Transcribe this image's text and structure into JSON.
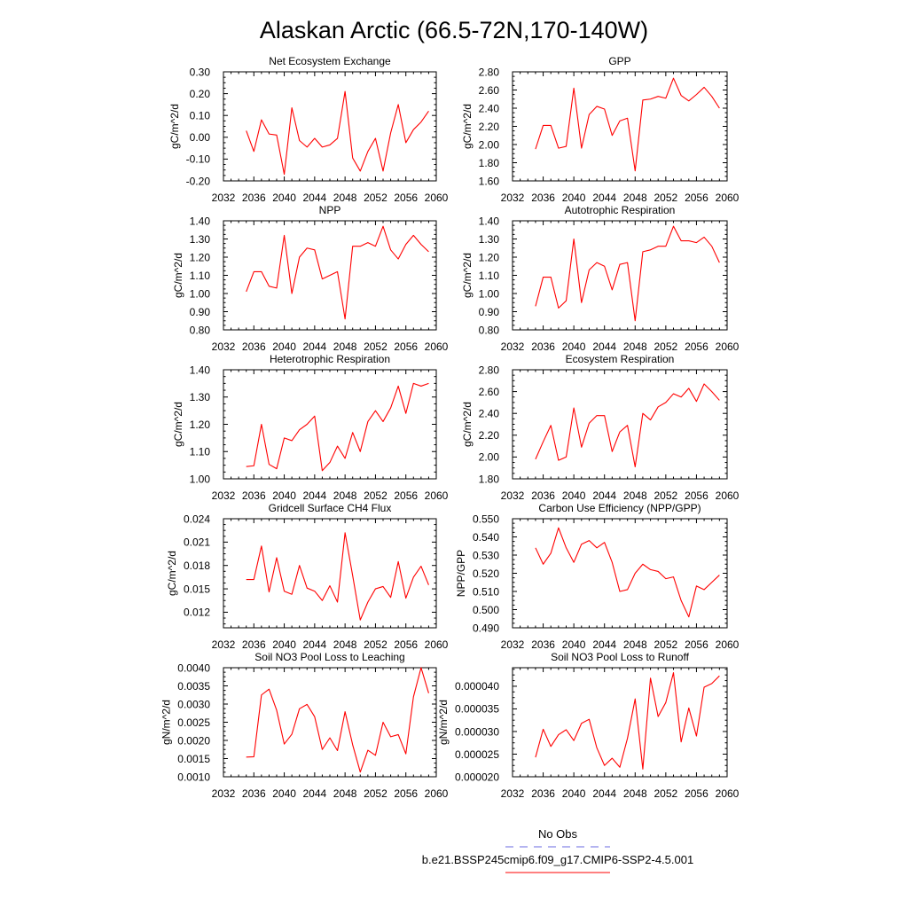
{
  "figure": {
    "title": "Alaskan Arctic (66.5-72N,170-140W)",
    "legend_position": "bottom",
    "legend": [
      {
        "label": "No Obs",
        "color": "#6a6ae0",
        "line_style": "dashed"
      },
      {
        "label": "b.e21.BSSP245cmip6.f09_g17.CMIP6-SSP2-4.5.001",
        "color": "#ff0000",
        "line_style": "solid"
      }
    ]
  },
  "chart_data": [
    {
      "type": "line",
      "title": "Net Ecosystem Exchange",
      "ylabel": "gC/m^2/d",
      "grid": false,
      "xlim": [
        2032,
        2060
      ],
      "ylim": [
        -0.2,
        0.3
      ],
      "xticks": [
        2032,
        2036,
        2040,
        2044,
        2048,
        2052,
        2056,
        2060
      ],
      "yticks": [
        -0.2,
        -0.1,
        0.0,
        0.1,
        0.2,
        0.3
      ],
      "ytick_labels": [
        "-0.20",
        "-0.10",
        "0.00",
        "0.10",
        "0.20",
        "0.30"
      ],
      "x": [
        2035,
        2036,
        2037,
        2038,
        2039,
        2040,
        2041,
        2042,
        2043,
        2044,
        2045,
        2046,
        2047,
        2048,
        2049,
        2050,
        2051,
        2052,
        2053,
        2054,
        2055,
        2056,
        2057,
        2058,
        2059
      ],
      "values": [
        0.03,
        -0.065,
        0.08,
        0.015,
        0.01,
        -0.17,
        0.135,
        -0.015,
        -0.045,
        -0.005,
        -0.045,
        -0.035,
        -0.005,
        0.21,
        -0.095,
        -0.155,
        -0.065,
        -0.005,
        -0.155,
        0.02,
        0.15,
        -0.025,
        0.035,
        0.07,
        0.12
      ]
    },
    {
      "type": "line",
      "title": "GPP",
      "ylabel": "gC/m^2/d",
      "grid": false,
      "xlim": [
        2032,
        2060
      ],
      "ylim": [
        1.6,
        2.8
      ],
      "xticks": [
        2032,
        2036,
        2040,
        2044,
        2048,
        2052,
        2056,
        2060
      ],
      "yticks": [
        1.6,
        1.8,
        2.0,
        2.2,
        2.4,
        2.6,
        2.8
      ],
      "ytick_labels": [
        "1.60",
        "1.80",
        "2.00",
        "2.20",
        "2.40",
        "2.60",
        "2.80"
      ],
      "x": [
        2035,
        2036,
        2037,
        2038,
        2039,
        2040,
        2041,
        2042,
        2043,
        2044,
        2045,
        2046,
        2047,
        2048,
        2049,
        2050,
        2051,
        2052,
        2053,
        2054,
        2055,
        2056,
        2057,
        2058,
        2059
      ],
      "values": [
        1.95,
        2.21,
        2.21,
        1.96,
        1.98,
        2.62,
        1.96,
        2.33,
        2.42,
        2.39,
        2.1,
        2.26,
        2.29,
        1.71,
        2.49,
        2.5,
        2.53,
        2.51,
        2.73,
        2.54,
        2.48,
        2.55,
        2.63,
        2.53,
        2.4
      ]
    },
    {
      "type": "line",
      "title": "NPP",
      "ylabel": "gC/m^2/d",
      "grid": false,
      "xlim": [
        2032,
        2060
      ],
      "ylim": [
        0.8,
        1.4
      ],
      "xticks": [
        2032,
        2036,
        2040,
        2044,
        2048,
        2052,
        2056,
        2060
      ],
      "yticks": [
        0.8,
        0.9,
        1.0,
        1.1,
        1.2,
        1.3,
        1.4
      ],
      "ytick_labels": [
        "0.80",
        "0.90",
        "1.00",
        "1.10",
        "1.20",
        "1.30",
        "1.40"
      ],
      "x": [
        2035,
        2036,
        2037,
        2038,
        2039,
        2040,
        2041,
        2042,
        2043,
        2044,
        2045,
        2046,
        2047,
        2048,
        2049,
        2050,
        2051,
        2052,
        2053,
        2054,
        2055,
        2056,
        2057,
        2058,
        2059
      ],
      "values": [
        1.01,
        1.12,
        1.12,
        1.04,
        1.03,
        1.32,
        1.0,
        1.2,
        1.25,
        1.24,
        1.08,
        1.1,
        1.12,
        0.86,
        1.26,
        1.26,
        1.28,
        1.26,
        1.37,
        1.24,
        1.19,
        1.27,
        1.32,
        1.27,
        1.23
      ]
    },
    {
      "type": "line",
      "title": "Autotrophic Respiration",
      "ylabel": "gC/m^2/d",
      "grid": false,
      "xlim": [
        2032,
        2060
      ],
      "ylim": [
        0.8,
        1.4
      ],
      "xticks": [
        2032,
        2036,
        2040,
        2044,
        2048,
        2052,
        2056,
        2060
      ],
      "yticks": [
        0.8,
        0.9,
        1.0,
        1.1,
        1.2,
        1.3,
        1.4
      ],
      "ytick_labels": [
        "0.80",
        "0.90",
        "1.00",
        "1.10",
        "1.20",
        "1.30",
        "1.40"
      ],
      "x": [
        2035,
        2036,
        2037,
        2038,
        2039,
        2040,
        2041,
        2042,
        2043,
        2044,
        2045,
        2046,
        2047,
        2048,
        2049,
        2050,
        2051,
        2052,
        2053,
        2054,
        2055,
        2056,
        2057,
        2058,
        2059
      ],
      "values": [
        0.93,
        1.09,
        1.09,
        0.92,
        0.96,
        1.3,
        0.95,
        1.13,
        1.17,
        1.15,
        1.02,
        1.16,
        1.17,
        0.85,
        1.23,
        1.24,
        1.26,
        1.26,
        1.37,
        1.29,
        1.29,
        1.28,
        1.31,
        1.26,
        1.17
      ]
    },
    {
      "type": "line",
      "title": "Heterotrophic Respiration",
      "ylabel": "gC/m^2/d",
      "grid": false,
      "xlim": [
        2032,
        2060
      ],
      "ylim": [
        1.0,
        1.4
      ],
      "xticks": [
        2032,
        2036,
        2040,
        2044,
        2048,
        2052,
        2056,
        2060
      ],
      "yticks": [
        1.0,
        1.1,
        1.2,
        1.3,
        1.4
      ],
      "ytick_labels": [
        "1.00",
        "1.10",
        "1.20",
        "1.30",
        "1.40"
      ],
      "x": [
        2035,
        2036,
        2037,
        2038,
        2039,
        2040,
        2041,
        2042,
        2043,
        2044,
        2045,
        2046,
        2047,
        2048,
        2049,
        2050,
        2051,
        2052,
        2053,
        2054,
        2055,
        2056,
        2057,
        2058,
        2059
      ],
      "values": [
        1.045,
        1.048,
        1.2,
        1.053,
        1.037,
        1.15,
        1.14,
        1.18,
        1.2,
        1.23,
        1.03,
        1.06,
        1.12,
        1.075,
        1.17,
        1.1,
        1.21,
        1.25,
        1.21,
        1.26,
        1.34,
        1.24,
        1.35,
        1.34,
        1.35
      ]
    },
    {
      "type": "line",
      "title": "Ecosystem Respiration",
      "ylabel": "gC/m^2/d",
      "grid": false,
      "xlim": [
        2032,
        2060
      ],
      "ylim": [
        1.8,
        2.8
      ],
      "xticks": [
        2032,
        2036,
        2040,
        2044,
        2048,
        2052,
        2056,
        2060
      ],
      "yticks": [
        1.8,
        2.0,
        2.2,
        2.4,
        2.6,
        2.8
      ],
      "ytick_labels": [
        "1.80",
        "2.00",
        "2.20",
        "2.40",
        "2.60",
        "2.80"
      ],
      "x": [
        2035,
        2036,
        2037,
        2038,
        2039,
        2040,
        2041,
        2042,
        2043,
        2044,
        2045,
        2046,
        2047,
        2048,
        2049,
        2050,
        2051,
        2052,
        2053,
        2054,
        2055,
        2056,
        2057,
        2058,
        2059
      ],
      "values": [
        1.98,
        2.14,
        2.29,
        1.97,
        2.0,
        2.45,
        2.09,
        2.31,
        2.38,
        2.38,
        2.05,
        2.23,
        2.29,
        1.91,
        2.4,
        2.34,
        2.46,
        2.5,
        2.58,
        2.55,
        2.63,
        2.51,
        2.67,
        2.6,
        2.52
      ]
    },
    {
      "type": "line",
      "title": "Gridcell Surface CH4 Flux",
      "ylabel": "gC/m^2/d",
      "grid": false,
      "xlim": [
        2032,
        2060
      ],
      "ylim": [
        0.01,
        0.024
      ],
      "xticks": [
        2032,
        2036,
        2040,
        2044,
        2048,
        2052,
        2056,
        2060
      ],
      "yticks": [
        0.012,
        0.015,
        0.018,
        0.021,
        0.024
      ],
      "ytick_labels": [
        "0.012",
        "0.015",
        "0.018",
        "0.021",
        "0.024"
      ],
      "x": [
        2035,
        2036,
        2037,
        2038,
        2039,
        2040,
        2041,
        2042,
        2043,
        2044,
        2045,
        2046,
        2047,
        2048,
        2049,
        2050,
        2051,
        2052,
        2053,
        2054,
        2055,
        2056,
        2057,
        2058,
        2059
      ],
      "values": [
        0.0162,
        0.0162,
        0.0205,
        0.0146,
        0.019,
        0.0147,
        0.0143,
        0.018,
        0.0151,
        0.0147,
        0.0135,
        0.0154,
        0.0133,
        0.0222,
        0.0167,
        0.011,
        0.0133,
        0.015,
        0.0153,
        0.0139,
        0.0185,
        0.0138,
        0.0165,
        0.0179,
        0.0155
      ]
    },
    {
      "type": "line",
      "title": "Carbon Use Efficiency (NPP/GPP)",
      "ylabel": "NPP/GPP",
      "grid": false,
      "xlim": [
        2032,
        2060
      ],
      "ylim": [
        0.49,
        0.55
      ],
      "xticks": [
        2032,
        2036,
        2040,
        2044,
        2048,
        2052,
        2056,
        2060
      ],
      "yticks": [
        0.49,
        0.5,
        0.51,
        0.52,
        0.53,
        0.54,
        0.55
      ],
      "ytick_labels": [
        "0.490",
        "0.500",
        "0.510",
        "0.520",
        "0.530",
        "0.540",
        "0.550"
      ],
      "x": [
        2035,
        2036,
        2037,
        2038,
        2039,
        2040,
        2041,
        2042,
        2043,
        2044,
        2045,
        2046,
        2047,
        2048,
        2049,
        2050,
        2051,
        2052,
        2053,
        2054,
        2055,
        2056,
        2057,
        2058,
        2059
      ],
      "values": [
        0.534,
        0.525,
        0.531,
        0.545,
        0.534,
        0.526,
        0.536,
        0.538,
        0.534,
        0.537,
        0.526,
        0.51,
        0.511,
        0.52,
        0.525,
        0.522,
        0.521,
        0.517,
        0.518,
        0.505,
        0.496,
        0.513,
        0.511,
        0.515,
        0.519
      ]
    },
    {
      "type": "line",
      "title": "Soil NO3 Pool Loss to Leaching",
      "ylabel": "gN/m^2/d",
      "grid": false,
      "xlim": [
        2032,
        2060
      ],
      "ylim": [
        0.001,
        0.004
      ],
      "xticks": [
        2032,
        2036,
        2040,
        2044,
        2048,
        2052,
        2056,
        2060
      ],
      "yticks": [
        0.001,
        0.0015,
        0.002,
        0.0025,
        0.003,
        0.0035,
        0.004
      ],
      "ytick_labels": [
        "0.0010",
        "0.0015",
        "0.0020",
        "0.0025",
        "0.0030",
        "0.0035",
        "0.0040"
      ],
      "x": [
        2035,
        2036,
        2037,
        2038,
        2039,
        2040,
        2041,
        2042,
        2043,
        2044,
        2045,
        2046,
        2047,
        2048,
        2049,
        2050,
        2051,
        2052,
        2053,
        2054,
        2055,
        2056,
        2057,
        2058,
        2059
      ],
      "values": [
        0.00154,
        0.00155,
        0.00325,
        0.00341,
        0.00283,
        0.0019,
        0.00217,
        0.00287,
        0.00299,
        0.00265,
        0.00175,
        0.00207,
        0.00172,
        0.00279,
        0.00188,
        0.00113,
        0.00173,
        0.00159,
        0.0025,
        0.0021,
        0.00216,
        0.00163,
        0.0032,
        0.004,
        0.0033
      ]
    },
    {
      "type": "line",
      "title": "Soil NO3 Pool Loss to Runoff",
      "ylabel": "gN/m^2/d",
      "grid": false,
      "xlim": [
        2032,
        2060
      ],
      "ylim": [
        2e-05,
        4.41e-05
      ],
      "xticks": [
        2032,
        2036,
        2040,
        2044,
        2048,
        2052,
        2056,
        2060
      ],
      "yticks": [
        2e-05,
        2.5e-05,
        3e-05,
        3.5e-05,
        4e-05
      ],
      "ytick_labels": [
        "0.000020",
        "0.000025",
        "0.000030",
        "0.000035",
        "0.000040"
      ],
      "x": [
        2035,
        2036,
        2037,
        2038,
        2039,
        2040,
        2041,
        2042,
        2043,
        2044,
        2045,
        2046,
        2047,
        2048,
        2049,
        2050,
        2051,
        2052,
        2053,
        2054,
        2055,
        2056,
        2057,
        2058,
        2059
      ],
      "values": [
        2.43e-05,
        3.05e-05,
        2.67e-05,
        2.93e-05,
        3.04e-05,
        2.8e-05,
        3.18e-05,
        3.27e-05,
        2.64e-05,
        2.25e-05,
        2.41e-05,
        2.21e-05,
        2.85e-05,
        3.72e-05,
        2.17e-05,
        4.18e-05,
        3.33e-05,
        3.64e-05,
        4.3e-05,
        2.77e-05,
        3.52e-05,
        2.9e-05,
        3.98e-05,
        4.06e-05,
        4.23e-05
      ]
    }
  ]
}
